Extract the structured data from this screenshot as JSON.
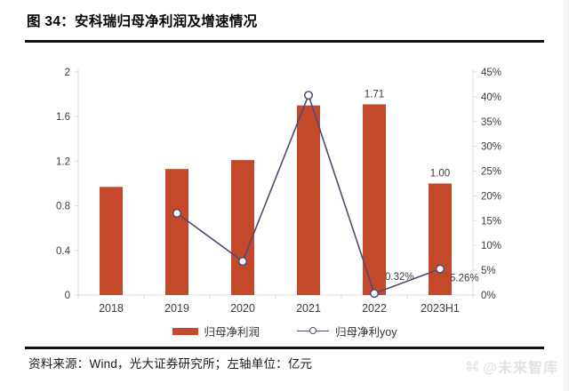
{
  "header": {
    "title": "图 34：安科瑞归母净利润及增速情况"
  },
  "footer": {
    "source": "资料来源：Wind，光大证券研究所；左轴单位：亿元",
    "watermark": "@未来智库"
  },
  "colors": {
    "bar": "#c4492b",
    "line": "#4e4a72",
    "axis": "#d9d9d9",
    "tick_text": "#3c3c3c",
    "rule": "#111111",
    "watermark": "#e2e2e2"
  },
  "chart_data": {
    "type": "bar",
    "subtype": "bar+line combo, dual axis",
    "title": "安科瑞归母净利润及增速情况",
    "categories": [
      "2018",
      "2019",
      "2020",
      "2021",
      "2022",
      "2023H1"
    ],
    "series": [
      {
        "name": "归母净利润",
        "type": "bar",
        "axis": "left",
        "unit": "亿元",
        "values": [
          0.97,
          1.13,
          1.21,
          1.7,
          1.71,
          1.0
        ],
        "data_labels": [
          "",
          "",
          "",
          "",
          "1.71",
          "1.00"
        ]
      },
      {
        "name": "归母净利yoy",
        "type": "line",
        "axis": "right",
        "unit": "%",
        "values": [
          null,
          16.5,
          6.8,
          40.3,
          0.32,
          5.26
        ],
        "data_labels": [
          "",
          "",
          "",
          "",
          "0.32%",
          "5.26%"
        ]
      }
    ],
    "left_axis": {
      "min": 0,
      "max": 2,
      "step": 0.4,
      "ticks": [
        "2",
        "1.6",
        "1.2",
        "0.8",
        "0.4",
        "0"
      ],
      "label": "亿元"
    },
    "right_axis": {
      "min": 0,
      "max": 45,
      "step": 5,
      "ticks": [
        "45%",
        "40%",
        "35%",
        "30%",
        "25%",
        "20%",
        "15%",
        "10%",
        "5%",
        "0%"
      ]
    },
    "grid": false,
    "legend_position": "bottom",
    "legend": [
      "归母净利润",
      "归母净利yoy"
    ]
  }
}
